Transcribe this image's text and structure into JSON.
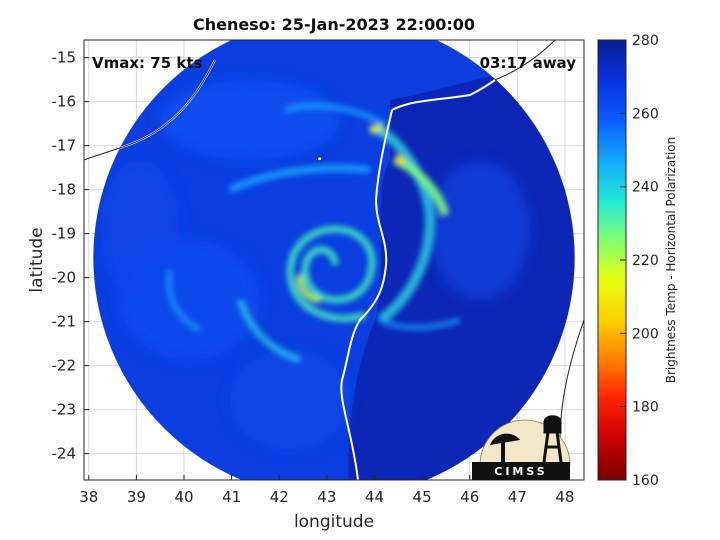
{
  "chart_data": {
    "type": "heatmap",
    "title": "Cheneso: 25-Jan-2023 22:00:00",
    "xlabel": "longitude",
    "ylabel": "latitude",
    "xlim": [
      37.9,
      48.4
    ],
    "ylim": [
      -24.6,
      -14.6
    ],
    "x_ticks": [
      38,
      39,
      40,
      41,
      42,
      43,
      44,
      45,
      46,
      47,
      48
    ],
    "y_ticks": [
      -15,
      -16,
      -17,
      -18,
      -19,
      -20,
      -21,
      -22,
      -23,
      -24
    ],
    "grid": true,
    "annotations": {
      "vmax": "Vmax: 75 kts",
      "timing": "03:17 away"
    },
    "swath": {
      "center_lon": 43.15,
      "center_lat": -19.55,
      "radius_deg": 5.05
    },
    "storm_center": {
      "lon": 42.85,
      "lat": -19.8
    },
    "colorbar": {
      "label": "Brightness Temp - Horizontal Polarization",
      "min": 160,
      "max": 280,
      "ticks": [
        280,
        260,
        240,
        220,
        200,
        180,
        160
      ],
      "colors": [
        "#7a0000",
        "#c80000",
        "#ff2000",
        "#ff7f00",
        "#ffd000",
        "#e8ff10",
        "#80ff70",
        "#20e8d8",
        "#10a8ff",
        "#0a5cff",
        "#0830e0",
        "#06208f"
      ]
    },
    "logo": "CIMSS"
  },
  "colors": {
    "swath_base": "#0a3ee0",
    "outside_fill": "#ffffff",
    "coastline": "#ffffff",
    "ocean_east": "#0d22b0"
  }
}
